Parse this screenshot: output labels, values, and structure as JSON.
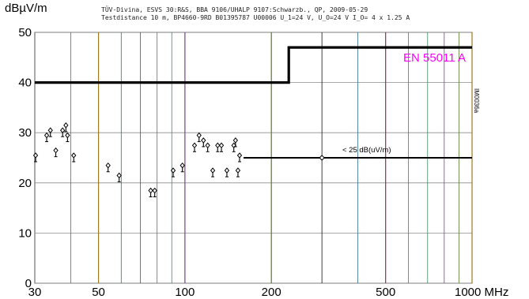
{
  "header": {
    "y_unit": "dBµV/m",
    "line1": "TÜV-Divina, ESVS 30:R&S, BBA 9106/UHALP 9107:Schwarzb., QP, 2009-05-29",
    "line2": "Testdistance 10 m, BP4660-9RD B01395787 U00006 U_1=24 V, U_O=24 V I_O= 4 x 1.25 A"
  },
  "chart_data": {
    "type": "scatter",
    "title": "",
    "ylabel": "dBµV/m",
    "xlabel": "MHz",
    "x_scale": "log",
    "xlim": [
      30,
      1000
    ],
    "ylim": [
      0,
      50
    ],
    "x_ticks": [
      30,
      50,
      100,
      200,
      500,
      1000
    ],
    "x_tick_labels": [
      "30",
      "50",
      "100",
      "200",
      "500",
      "1000 MHz"
    ],
    "y_ticks": [
      0,
      10,
      20,
      30,
      40,
      50
    ],
    "y_tick_labels": [
      "0",
      "10",
      "20",
      "30",
      "40",
      "50"
    ],
    "limit_line": {
      "name": "EN 55011 A",
      "color": "#ff00ff",
      "points": [
        [
          30,
          40
        ],
        [
          230,
          40
        ],
        [
          230,
          47
        ],
        [
          1000,
          47
        ]
      ]
    },
    "noise_floor": {
      "label": "< 25 dB(uV/m)",
      "points": [
        [
          160,
          25
        ],
        [
          1000,
          25
        ]
      ]
    },
    "measurements": [
      {
        "x": 30.2,
        "y": 25
      },
      {
        "x": 33.0,
        "y": 29
      },
      {
        "x": 34.0,
        "y": 30
      },
      {
        "x": 35.5,
        "y": 26
      },
      {
        "x": 37.5,
        "y": 30
      },
      {
        "x": 38.5,
        "y": 31
      },
      {
        "x": 39.0,
        "y": 29
      },
      {
        "x": 41.0,
        "y": 25
      },
      {
        "x": 54.0,
        "y": 23
      },
      {
        "x": 59.0,
        "y": 21
      },
      {
        "x": 76.0,
        "y": 18
      },
      {
        "x": 78.5,
        "y": 18
      },
      {
        "x": 91.0,
        "y": 22
      },
      {
        "x": 98.0,
        "y": 23
      },
      {
        "x": 108.0,
        "y": 27
      },
      {
        "x": 112.0,
        "y": 29
      },
      {
        "x": 116.0,
        "y": 28
      },
      {
        "x": 120.0,
        "y": 27
      },
      {
        "x": 125.0,
        "y": 22
      },
      {
        "x": 130.0,
        "y": 27
      },
      {
        "x": 134.0,
        "y": 27
      },
      {
        "x": 140.0,
        "y": 22
      },
      {
        "x": 148.0,
        "y": 27
      },
      {
        "x": 150.0,
        "y": 28
      },
      {
        "x": 153.0,
        "y": 22
      },
      {
        "x": 155.0,
        "y": 25
      }
    ],
    "grid": true,
    "colored_gridlines": true,
    "side_code": "IM0036a"
  }
}
